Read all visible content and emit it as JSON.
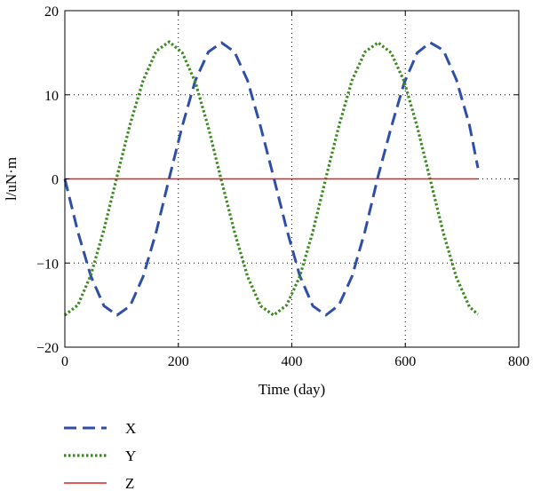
{
  "chart_data": {
    "type": "line",
    "xlabel": "Time (day)",
    "ylabel": "l/uN·m",
    "xlim": [
      0,
      800
    ],
    "ylim": [
      -20,
      20
    ],
    "xticks": [
      0,
      200,
      400,
      600,
      800
    ],
    "yticks": [
      -20,
      -10,
      0,
      10,
      20
    ],
    "xtick_labels": [
      "0",
      "200",
      "400",
      "600",
      "800"
    ],
    "ytick_labels": [
      "−20",
      "−10",
      "0",
      "10",
      "20"
    ],
    "grid": "dotted",
    "legend_position": "below",
    "series": [
      {
        "name": "X",
        "color": "#2f4ea8",
        "style": "dashed",
        "x": [
          0,
          23,
          46,
          69,
          92,
          115,
          138,
          161,
          184,
          207,
          230,
          253,
          276,
          299,
          322,
          345,
          368,
          391,
          414,
          437,
          460,
          483,
          506,
          529,
          552,
          575,
          598,
          621,
          644,
          667,
          690,
          713,
          728
        ],
        "y": [
          0,
          -6.3,
          -11.6,
          -15.1,
          -16.2,
          -15.1,
          -11.6,
          -6.3,
          0.1,
          6.3,
          11.7,
          15.1,
          16.2,
          15.1,
          11.7,
          6.2,
          0.2,
          -6.0,
          -11.5,
          -15.1,
          -16.2,
          -15.0,
          -11.6,
          -6.2,
          0.3,
          6.1,
          11.4,
          15.0,
          16.2,
          15.3,
          11.8,
          6.4,
          1.3
        ]
      },
      {
        "name": "Y",
        "color": "#3a8a1f",
        "style": "dotted",
        "x": [
          0,
          23,
          46,
          69,
          92,
          115,
          138,
          161,
          184,
          207,
          230,
          253,
          276,
          299,
          322,
          345,
          368,
          391,
          414,
          437,
          460,
          483,
          506,
          529,
          552,
          575,
          598,
          621,
          644,
          667,
          690,
          713,
          728
        ],
        "y": [
          -16.2,
          -15.0,
          -11.4,
          -6.0,
          0.3,
          6.5,
          11.7,
          15.2,
          16.3,
          15.0,
          11.5,
          6.1,
          -0.2,
          -6.3,
          -11.6,
          -15.1,
          -16.2,
          -15.0,
          -11.6,
          -6.3,
          0.1,
          6.3,
          11.7,
          15.1,
          16.2,
          15.0,
          11.6,
          6.2,
          -0.1,
          -6.4,
          -11.7,
          -15.2,
          -16.1
        ]
      },
      {
        "name": "Z",
        "color": "#e02020",
        "style": "solid",
        "x": [
          0,
          728
        ],
        "y": [
          0,
          0
        ]
      }
    ]
  }
}
